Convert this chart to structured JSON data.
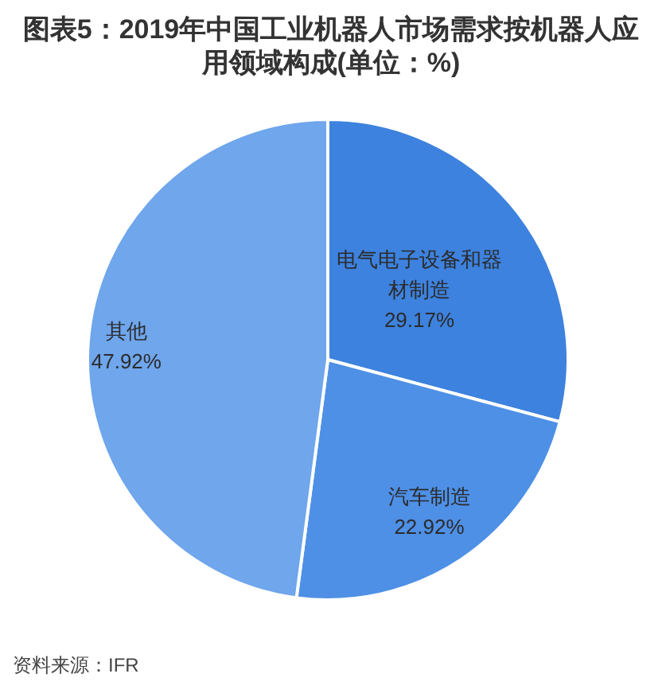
{
  "chart_data": {
    "type": "pie",
    "title": "图表5：2019年中国工业机器人市场需求按机器人应用领域构成(单位：%)",
    "categories": [
      "电气电子设备和器材制造",
      "汽车制造",
      "其他"
    ],
    "values": [
      29.17,
      22.92,
      47.92
    ],
    "colors": [
      "#3d82de",
      "#4e90e6",
      "#6fa6ec"
    ],
    "value_labels": [
      "29.17%",
      "22.92%",
      "47.92%"
    ],
    "annotations": [
      "资料来源：IFR"
    ]
  }
}
